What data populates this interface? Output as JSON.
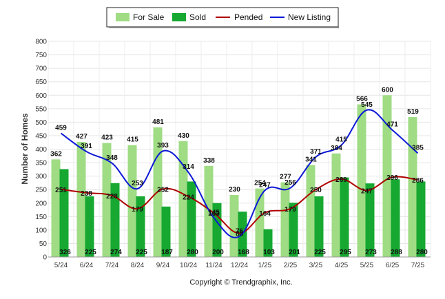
{
  "chart_data": {
    "type": "bar",
    "categories": [
      "5/24",
      "6/24",
      "7/24",
      "8/24",
      "9/24",
      "10/24",
      "11/24",
      "12/24",
      "1/25",
      "2/25",
      "3/25",
      "4/25",
      "5/25",
      "6/25",
      "7/25"
    ],
    "series": [
      {
        "name": "For Sale",
        "kind": "bar",
        "color": "#9fdc84",
        "values": [
          362,
          427,
          423,
          415,
          481,
          430,
          338,
          230,
          254,
          277,
          341,
          384,
          566,
          600,
          519
        ]
      },
      {
        "name": "Sold",
        "kind": "bar",
        "color": "#16a831",
        "values": [
          326,
          225,
          274,
          225,
          187,
          280,
          200,
          168,
          103,
          201,
          225,
          295,
          273,
          288,
          280
        ]
      },
      {
        "name": "Pended",
        "kind": "line",
        "color": "#b00000",
        "values": [
          251,
          238,
          228,
          179,
          252,
          224,
          163,
          88,
          164,
          179,
          250,
          289,
          247,
          296,
          286
        ]
      },
      {
        "name": "New Listing",
        "kind": "line",
        "color": "#0b18d6",
        "values": [
          459,
          391,
          348,
          253,
          393,
          314,
          145,
          76,
          247,
          256,
          371,
          415,
          545,
          471,
          385
        ]
      }
    ],
    "ylabel": "Number of Homes",
    "yticks": [
      0,
      50,
      100,
      150,
      200,
      250,
      300,
      350,
      400,
      450,
      500,
      550,
      600,
      650,
      700,
      750,
      800
    ],
    "ylim": [
      0,
      800
    ],
    "grid": true,
    "legend_position": "top-center"
  },
  "footer": {
    "copyright": "Copyright © Trendgraphix, Inc."
  }
}
